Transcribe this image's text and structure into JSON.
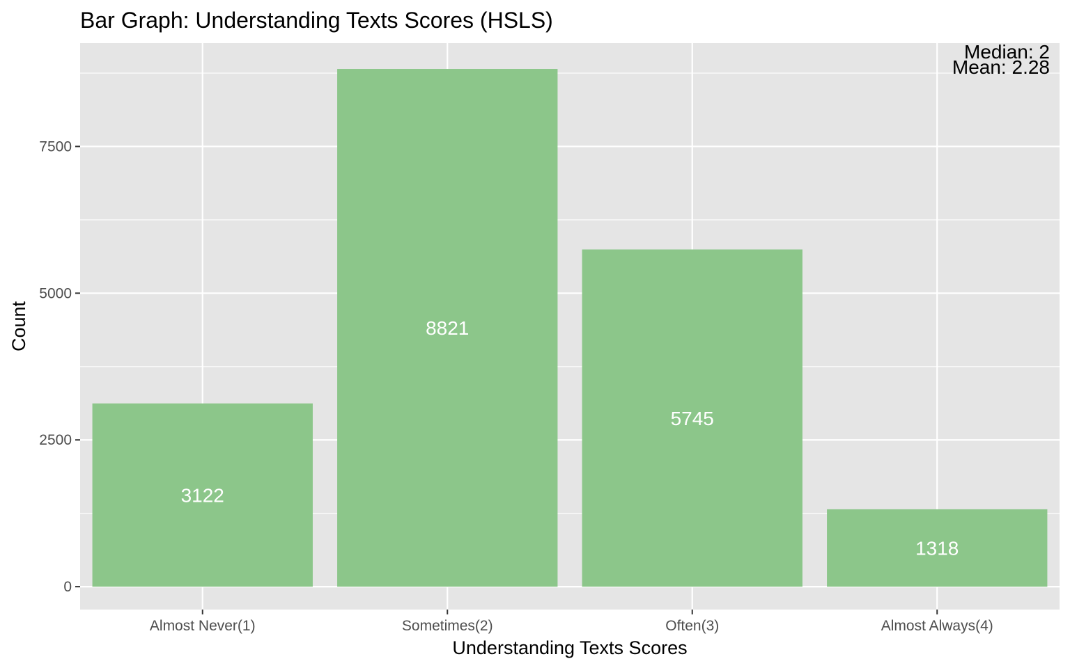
{
  "chart_data": {
    "type": "bar",
    "title": "Bar Graph: Understanding Texts Scores (HSLS)",
    "xlabel": "Understanding Texts Scores",
    "ylabel": "Count",
    "categories": [
      "Almost Never(1)",
      "Sometimes(2)",
      "Often(3)",
      "Almost Always(4)"
    ],
    "values": [
      3122,
      8821,
      5745,
      1318
    ],
    "value_labels": [
      "3122",
      "8821",
      "5745",
      "1318"
    ],
    "ylim": [
      -390,
      9260
    ],
    "y_ticks": [
      0,
      2500,
      5000,
      7500
    ],
    "y_tick_labels": [
      "0",
      "2500",
      "5000",
      "7500"
    ],
    "annotations": {
      "median": "Median: 2",
      "mean": "Mean: 2.28"
    },
    "annotation_placement": "top-right",
    "grid": true,
    "legend": "none",
    "colors": {
      "bar": "#8cc68a",
      "panel_background": "#e5e5e5",
      "grid": "#ffffff",
      "bar_label": "#ffffff",
      "tick_label": "#4d4d4d",
      "tick_mark": "#333333",
      "text": "#000000"
    }
  }
}
